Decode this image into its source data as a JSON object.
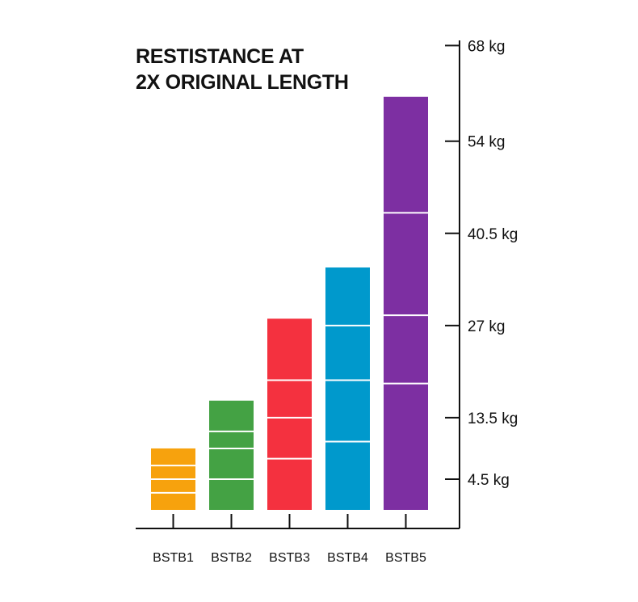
{
  "chart_data": {
    "type": "bar",
    "title_lines": [
      "RESTISTANCE AT",
      "2X ORIGINAL LENGTH"
    ],
    "categories": [
      "BSTB1",
      "BSTB2",
      "BSTB3",
      "BSTB4",
      "BSTB5"
    ],
    "values": [
      9,
      16,
      28,
      35.5,
      60.5
    ],
    "segment_dividers": [
      [
        2.5,
        4.5,
        6.5
      ],
      [
        4.5,
        9,
        11.5
      ],
      [
        7.5,
        13.5,
        19
      ],
      [
        10,
        19,
        27
      ],
      [
        18.5,
        28.5,
        43.5
      ]
    ],
    "colors": [
      "#F7A20D",
      "#44A244",
      "#F4313F",
      "#0099CC",
      "#7D2FA2"
    ],
    "y_axis": {
      "position": "right",
      "ticks": [
        {
          "value": 4.5,
          "label": "4.5 kg"
        },
        {
          "value": 13.5,
          "label": "13.5 kg"
        },
        {
          "value": 27,
          "label": "27 kg"
        },
        {
          "value": 40.5,
          "label": "40.5 kg"
        },
        {
          "value": 54,
          "label": "54 kg"
        },
        {
          "value": 68,
          "label": "68 kg"
        }
      ]
    },
    "grid": false,
    "legend": "none"
  }
}
